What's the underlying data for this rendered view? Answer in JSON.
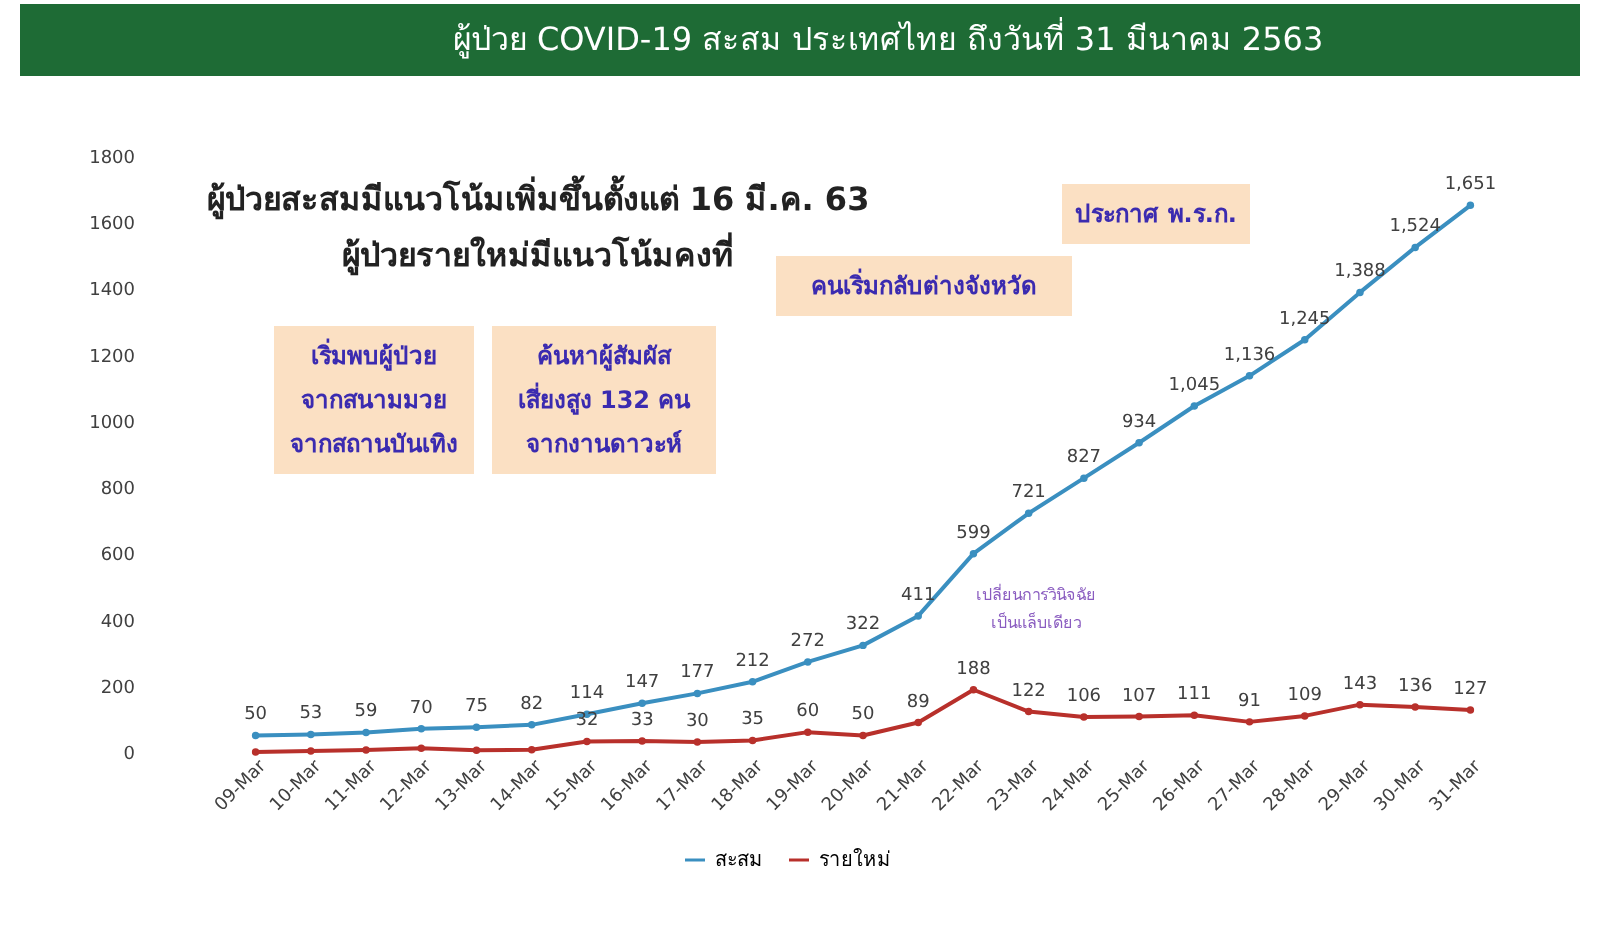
{
  "chart_data": {
    "type": "line",
    "title": "ผู้ป่วย COVID-19 สะสม  ประเทศไทย ถึงวันที่ 31 มีนาคม 2563",
    "subtitle": [
      "ผู้ป่วยสะสมมีแนวโน้มเพิ่มขึ้นตั้งแต่ 16 มี.ค. 63",
      "ผู้ป่วยรายใหม่มีแนวโน้มคงที่"
    ],
    "categories": [
      "09-Mar",
      "10-Mar",
      "11-Mar",
      "12-Mar",
      "13-Mar",
      "14-Mar",
      "15-Mar",
      "16-Mar",
      "17-Mar",
      "18-Mar",
      "19-Mar",
      "20-Mar",
      "21-Mar",
      "22-Mar",
      "23-Mar",
      "24-Mar",
      "25-Mar",
      "26-Mar",
      "27-Mar",
      "28-Mar",
      "29-Mar",
      "30-Mar",
      "31-Mar"
    ],
    "series": [
      {
        "name": "สะสม",
        "color": "#3a8fc0",
        "values": [
          50,
          53,
          59,
          70,
          75,
          82,
          114,
          147,
          177,
          212,
          272,
          322,
          411,
          599,
          721,
          827,
          934,
          1045,
          1136,
          1245,
          1388,
          1524,
          1651
        ],
        "value_labels": [
          "50",
          "53",
          "59",
          "70",
          "75",
          "82",
          "114",
          "147",
          "177",
          "212",
          "272",
          "322",
          "411",
          "599",
          "721",
          "827",
          "934",
          "1,045",
          "1,136",
          "1,245",
          "1,388",
          "1,524",
          "1,651"
        ]
      },
      {
        "name": "รายใหม่",
        "color": "#b8302b",
        "values": [
          0,
          3,
          6,
          11,
          5,
          7,
          32,
          33,
          30,
          35,
          60,
          50,
          89,
          188,
          122,
          106,
          107,
          111,
          91,
          109,
          143,
          136,
          127
        ],
        "value_labels": [
          null,
          null,
          null,
          null,
          null,
          null,
          "32",
          "33",
          "30",
          "35",
          "60",
          "50",
          "89",
          "188",
          "122",
          "106",
          "107",
          "111",
          "91",
          "109",
          "143",
          "136",
          "127"
        ]
      }
    ],
    "ylim": [
      0,
      1800
    ],
    "yticks": [
      0,
      200,
      400,
      600,
      800,
      1000,
      1200,
      1400,
      1600,
      1800
    ],
    "grid": false,
    "legend": "bottom",
    "marker": "circle",
    "line_style": "solid",
    "annotations": [
      "เริ่มพบผู้ป่วย\nจากสนามมวย\nจากสถานบันเทิง",
      "ค้นหาผู้สัมผัส\nเสี่ยงสูง 132 คน\nจากงานดาวะห์",
      "คนเริ่มกลับต่างจังหวัด",
      "ประกาศ พ.ร.ก.",
      "เปลี่ยนการวินิจฉัย\nเป็นแล็บเดียว"
    ]
  }
}
